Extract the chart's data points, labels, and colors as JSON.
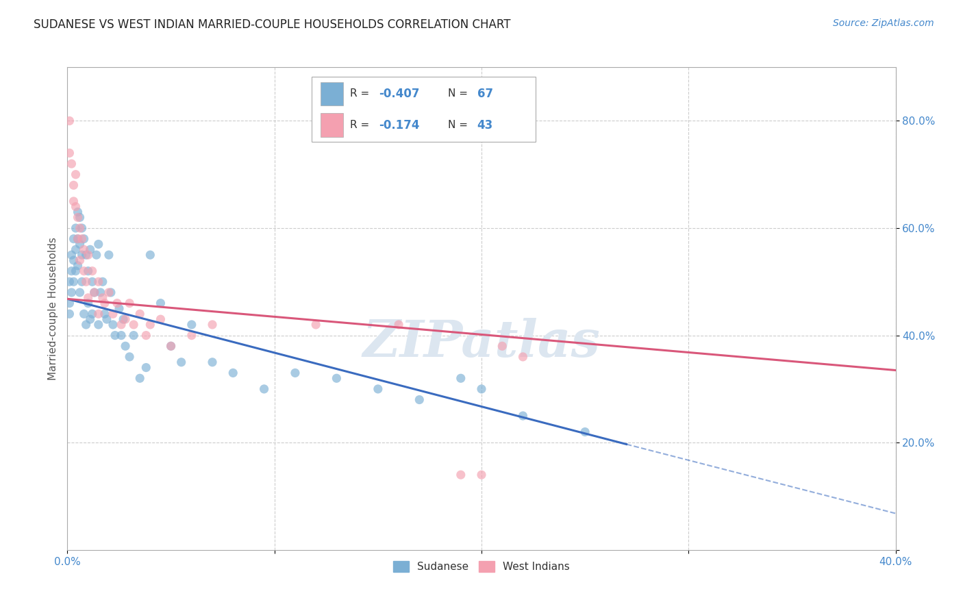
{
  "title": "SUDANESE VS WEST INDIAN MARRIED-COUPLE HOUSEHOLDS CORRELATION CHART",
  "source": "Source: ZipAtlas.com",
  "ylabel": "Married-couple Households",
  "xlim": [
    0.0,
    0.4
  ],
  "ylim": [
    0.0,
    0.9
  ],
  "x_ticks": [
    0.0,
    0.1,
    0.2,
    0.3,
    0.4
  ],
  "x_tick_labels": [
    "0.0%",
    "",
    "",
    "",
    "40.0%"
  ],
  "y_ticks": [
    0.0,
    0.2,
    0.4,
    0.6,
    0.8
  ],
  "y_tick_labels": [
    "",
    "20.0%",
    "40.0%",
    "60.0%",
    "80.0%"
  ],
  "grid_color": "#cccccc",
  "background_color": "#ffffff",
  "title_color": "#222222",
  "axis_label_color": "#555555",
  "tick_color": "#4488cc",
  "blue_color": "#7bafd4",
  "pink_color": "#f4a0b0",
  "blue_line_color": "#3a6bbf",
  "pink_line_color": "#d9577a",
  "watermark": "ZIPatlas",
  "watermark_color": "#dce6f0",
  "blue_line_x0": 0.0,
  "blue_line_y0": 0.468,
  "blue_line_x1": 0.27,
  "blue_line_y1": 0.197,
  "blue_line_dash_x1": 0.4,
  "blue_line_dash_y1": 0.068,
  "pink_line_x0": 0.0,
  "pink_line_y0": 0.468,
  "pink_line_x1": 0.4,
  "pink_line_y1": 0.335,
  "sudanese_x": [
    0.001,
    0.001,
    0.001,
    0.002,
    0.002,
    0.002,
    0.003,
    0.003,
    0.003,
    0.004,
    0.004,
    0.004,
    0.005,
    0.005,
    0.005,
    0.006,
    0.006,
    0.006,
    0.007,
    0.007,
    0.007,
    0.008,
    0.008,
    0.009,
    0.009,
    0.01,
    0.01,
    0.011,
    0.011,
    0.012,
    0.012,
    0.013,
    0.014,
    0.015,
    0.015,
    0.016,
    0.017,
    0.018,
    0.019,
    0.02,
    0.021,
    0.022,
    0.023,
    0.025,
    0.026,
    0.027,
    0.028,
    0.03,
    0.032,
    0.035,
    0.038,
    0.04,
    0.045,
    0.05,
    0.055,
    0.06,
    0.07,
    0.08,
    0.095,
    0.11,
    0.13,
    0.15,
    0.17,
    0.19,
    0.2,
    0.22,
    0.25
  ],
  "sudanese_y": [
    0.5,
    0.46,
    0.44,
    0.55,
    0.52,
    0.48,
    0.58,
    0.54,
    0.5,
    0.6,
    0.56,
    0.52,
    0.63,
    0.58,
    0.53,
    0.62,
    0.57,
    0.48,
    0.6,
    0.55,
    0.5,
    0.58,
    0.44,
    0.55,
    0.42,
    0.52,
    0.46,
    0.56,
    0.43,
    0.5,
    0.44,
    0.48,
    0.55,
    0.57,
    0.42,
    0.48,
    0.5,
    0.44,
    0.43,
    0.55,
    0.48,
    0.42,
    0.4,
    0.45,
    0.4,
    0.43,
    0.38,
    0.36,
    0.4,
    0.32,
    0.34,
    0.55,
    0.46,
    0.38,
    0.35,
    0.42,
    0.35,
    0.33,
    0.3,
    0.33,
    0.32,
    0.3,
    0.28,
    0.32,
    0.3,
    0.25,
    0.22
  ],
  "westindian_x": [
    0.001,
    0.001,
    0.002,
    0.003,
    0.003,
    0.004,
    0.004,
    0.005,
    0.005,
    0.006,
    0.006,
    0.007,
    0.008,
    0.008,
    0.009,
    0.01,
    0.01,
    0.012,
    0.013,
    0.015,
    0.015,
    0.017,
    0.018,
    0.02,
    0.022,
    0.024,
    0.026,
    0.028,
    0.03,
    0.032,
    0.035,
    0.038,
    0.04,
    0.045,
    0.05,
    0.06,
    0.07,
    0.12,
    0.16,
    0.19,
    0.2,
    0.21,
    0.22
  ],
  "westindian_y": [
    0.8,
    0.74,
    0.72,
    0.68,
    0.65,
    0.7,
    0.64,
    0.62,
    0.58,
    0.6,
    0.54,
    0.58,
    0.52,
    0.56,
    0.5,
    0.55,
    0.47,
    0.52,
    0.48,
    0.5,
    0.44,
    0.47,
    0.46,
    0.48,
    0.44,
    0.46,
    0.42,
    0.43,
    0.46,
    0.42,
    0.44,
    0.4,
    0.42,
    0.43,
    0.38,
    0.4,
    0.42,
    0.42,
    0.42,
    0.14,
    0.14,
    0.38,
    0.36
  ]
}
